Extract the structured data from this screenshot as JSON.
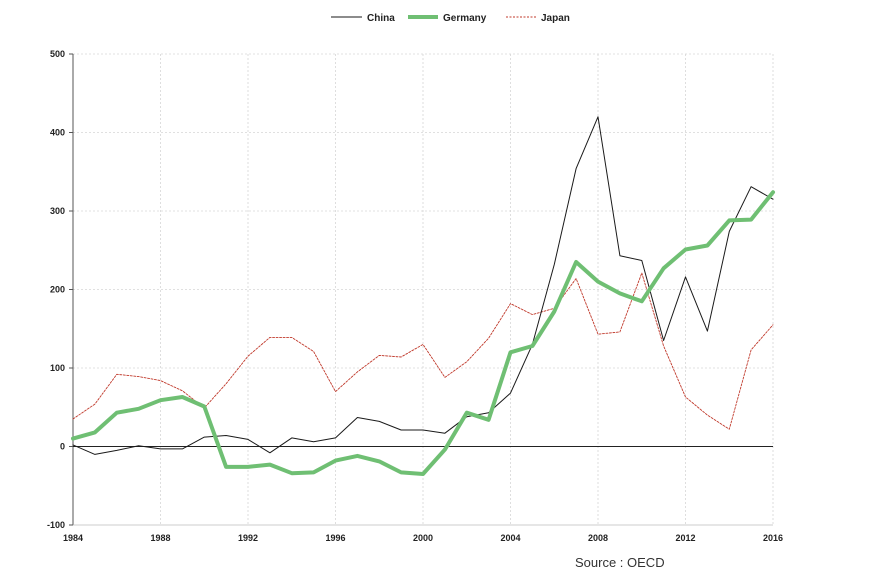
{
  "chart_data": {
    "type": "line",
    "x": [
      1984,
      1985,
      1986,
      1987,
      1988,
      1989,
      1990,
      1991,
      1992,
      1993,
      1994,
      1995,
      1996,
      1997,
      1998,
      1999,
      2000,
      2001,
      2002,
      2003,
      2004,
      2005,
      2006,
      2007,
      2008,
      2009,
      2010,
      2011,
      2012,
      2013,
      2014,
      2015,
      2016
    ],
    "xticks": [
      "1984",
      "1988",
      "1992",
      "1996",
      "2000",
      "2004",
      "2008",
      "2012",
      "2016"
    ],
    "yticks": [
      "-100",
      "0",
      "100",
      "200",
      "300",
      "400",
      "500"
    ],
    "ylim": [
      -100,
      500
    ],
    "xlim": [
      1984,
      2016
    ],
    "grid": "dotted",
    "legend_position": "top-center",
    "series": [
      {
        "name": "China",
        "color": "#1a1a1a",
        "style": "solid-thin",
        "values": [
          2,
          -10,
          -5,
          1,
          -3,
          -3,
          12,
          14,
          9,
          -8,
          11,
          6,
          11,
          37,
          32,
          21,
          21,
          17,
          38,
          43,
          68,
          130,
          232,
          354,
          420,
          243,
          237,
          135,
          216,
          147,
          274,
          331,
          315
        ]
      },
      {
        "name": "Germany",
        "color": "#6fbf73",
        "style": "solid-thick",
        "values": [
          10,
          18,
          43,
          48,
          59,
          63,
          51,
          -26,
          -26,
          -23,
          -34,
          -33,
          -18,
          -12,
          -19,
          -33,
          -35,
          -4,
          43,
          34,
          120,
          128,
          172,
          235,
          210,
          195,
          185,
          227,
          251,
          256,
          288,
          289,
          324
        ]
      },
      {
        "name": "Japan",
        "color": "#c0392b",
        "style": "dotted",
        "values": [
          35,
          54,
          92,
          89,
          84,
          71,
          49,
          80,
          115,
          139,
          139,
          121,
          70,
          95,
          116,
          114,
          130,
          88,
          108,
          138,
          182,
          168,
          176,
          214,
          143,
          146,
          221,
          128,
          63,
          40,
          22,
          123,
          155
        ]
      }
    ]
  },
  "source_text": "Source : OECD"
}
